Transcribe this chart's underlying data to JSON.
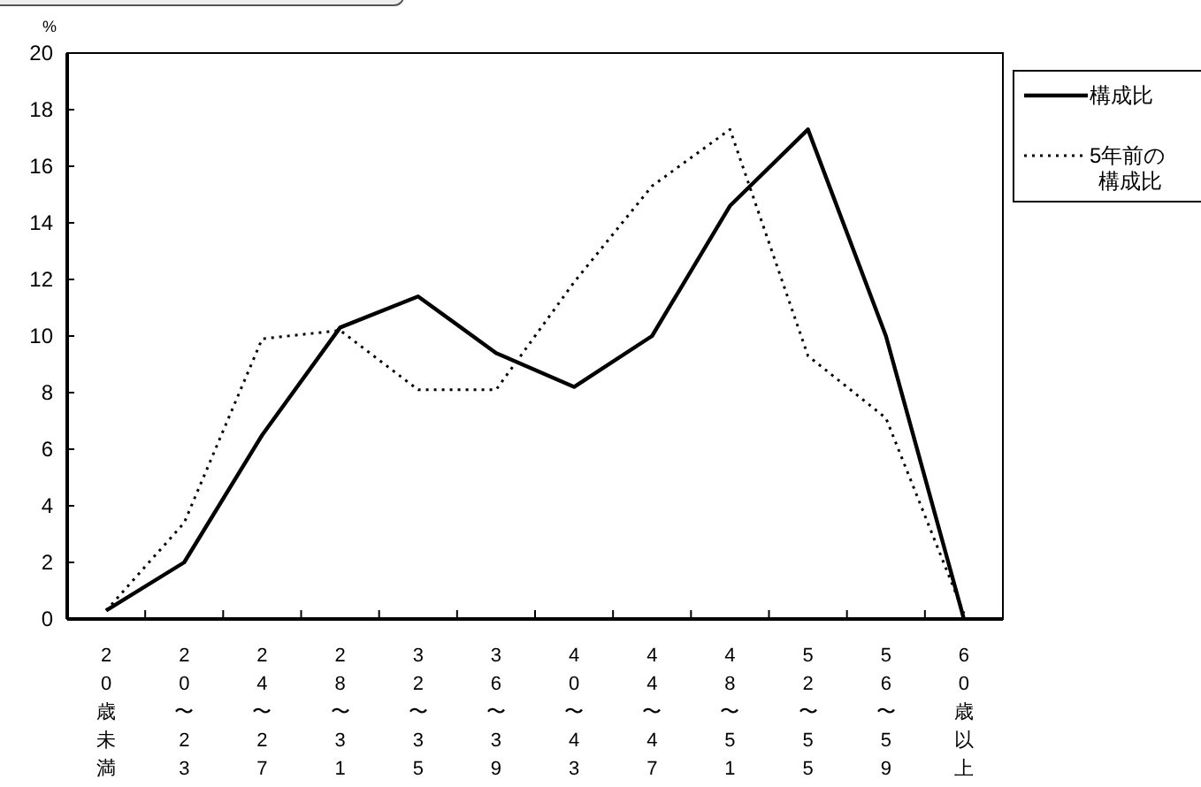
{
  "chart_data": {
    "type": "line",
    "ylabel": "%",
    "categories": [
      "20歳未満",
      "20〜23",
      "24〜27",
      "28〜31",
      "32〜35",
      "36〜39",
      "40〜43",
      "44〜47",
      "48〜51",
      "52〜55",
      "56〜59",
      "60歳以上"
    ],
    "series": [
      {
        "name": "構成比",
        "color": "#000000",
        "line_style": "solid",
        "values": [
          0.3,
          2.0,
          6.5,
          10.3,
          11.4,
          9.4,
          8.2,
          10.0,
          14.6,
          17.3,
          10.0,
          0.0
        ]
      },
      {
        "name": "5年前の構成比",
        "color": "#000000",
        "line_style": "dotted",
        "values": [
          0.3,
          3.4,
          9.9,
          10.2,
          8.1,
          8.1,
          11.9,
          15.3,
          17.3,
          9.3,
          7.1,
          0.2
        ]
      }
    ],
    "ylim": [
      0,
      20
    ],
    "yticks": [
      0,
      2,
      4,
      6,
      8,
      10,
      12,
      14,
      16,
      18,
      20
    ],
    "grid": false,
    "legend": "top right",
    "marker": "none"
  }
}
